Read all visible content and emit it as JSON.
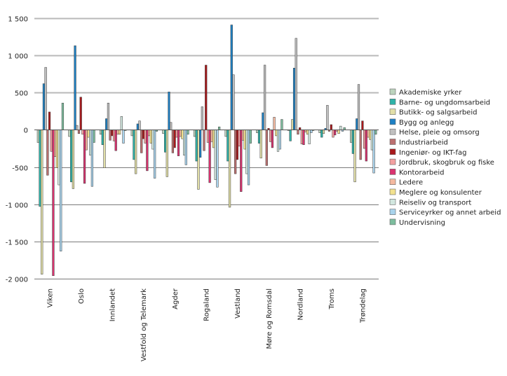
{
  "chart_data": {
    "type": "bar",
    "title": "",
    "xlabel": "",
    "ylabel": "",
    "ylim": [
      -2000,
      1500
    ],
    "yticks": [
      1500,
      1000,
      500,
      0,
      -500,
      -1000,
      -1500,
      -2000
    ],
    "ytick_labels": [
      "1 500",
      "1 000",
      "500",
      "0",
      "-500",
      "-1 000",
      "-1 500",
      "-2 000"
    ],
    "grid": true,
    "legend_position": "right",
    "categories": [
      "Viken",
      "Oslo",
      "Innlandet",
      "Vestfold og Telemark",
      "Agder",
      "Rogaland",
      "Vestland",
      "Møre og Romsdal",
      "Nordland",
      "Troms",
      "Trøndelag"
    ],
    "series": [
      {
        "name": "Akademiske yrker",
        "color": "#bcd3bd",
        "values": [
          -170,
          -90,
          -60,
          -80,
          -50,
          -90,
          -90,
          -40,
          -10,
          -40,
          -170
        ]
      },
      {
        "name": "Barne- og ungdomsarbeid",
        "color": "#2fb2a8",
        "values": [
          -1030,
          -700,
          -200,
          -400,
          -300,
          -420,
          -420,
          -180,
          -150,
          -100,
          -320
        ]
      },
      {
        "name": "Butikk- og salgsarbeid",
        "color": "#e2dfa8",
        "values": [
          -1940,
          -790,
          -510,
          -590,
          -630,
          -800,
          -1040,
          -380,
          140,
          -50,
          -700
        ]
      },
      {
        "name": "Bygg og anlegg",
        "color": "#1d80c4",
        "values": [
          620,
          1130,
          150,
          80,
          510,
          -370,
          1410,
          230,
          830,
          20,
          150
        ]
      },
      {
        "name": "Helse, pleie og omsorg",
        "color": "#c0c0c0",
        "values": [
          840,
          60,
          360,
          120,
          100,
          310,
          740,
          870,
          1230,
          330,
          610
        ]
      },
      {
        "name": "Industriarbeid",
        "color": "#bb7070",
        "values": [
          -610,
          -50,
          -140,
          -310,
          -310,
          -280,
          -590,
          -480,
          -60,
          -20,
          -400
        ]
      },
      {
        "name": "Ingeniør- og IKT-fag",
        "color": "#a8191c",
        "values": [
          240,
          440,
          -80,
          -120,
          -240,
          870,
          -400,
          20,
          30,
          70,
          120
        ]
      },
      {
        "name": "Jordbruk, skogbruk og fiske",
        "color": "#f2a0a0",
        "values": [
          -290,
          -60,
          -150,
          -180,
          -100,
          -170,
          -220,
          -160,
          -190,
          -100,
          -250
        ]
      },
      {
        "name": "Kontorarbeid",
        "color": "#d9336f",
        "values": [
          -1960,
          -720,
          -280,
          -550,
          -350,
          -710,
          -830,
          -240,
          -200,
          -70,
          -420
        ]
      },
      {
        "name": "Ledere",
        "color": "#f4b9a0",
        "values": [
          -360,
          -270,
          -60,
          -80,
          -90,
          -160,
          -140,
          170,
          -30,
          -20,
          -100
        ]
      },
      {
        "name": "Meglere og konsulenter",
        "color": "#f3e28f",
        "values": [
          -510,
          -100,
          -60,
          -180,
          -120,
          -240,
          -260,
          -80,
          -60,
          -50,
          -130
        ]
      },
      {
        "name": "Reiseliv og transport",
        "color": "#d2e7df",
        "values": [
          -740,
          -340,
          180,
          -260,
          -340,
          -670,
          -590,
          -290,
          -190,
          50,
          -270
        ]
      },
      {
        "name": "Serviceyrker og annet arbeid",
        "color": "#a9d3ec",
        "values": [
          -1630,
          -760,
          -180,
          -650,
          -470,
          -770,
          -740,
          -260,
          -40,
          -20,
          -580
        ]
      },
      {
        "name": "Undervisning",
        "color": "#7dbd9e",
        "values": [
          360,
          -170,
          -10,
          -20,
          -60,
          40,
          -180,
          140,
          -10,
          30,
          -60
        ]
      }
    ]
  }
}
